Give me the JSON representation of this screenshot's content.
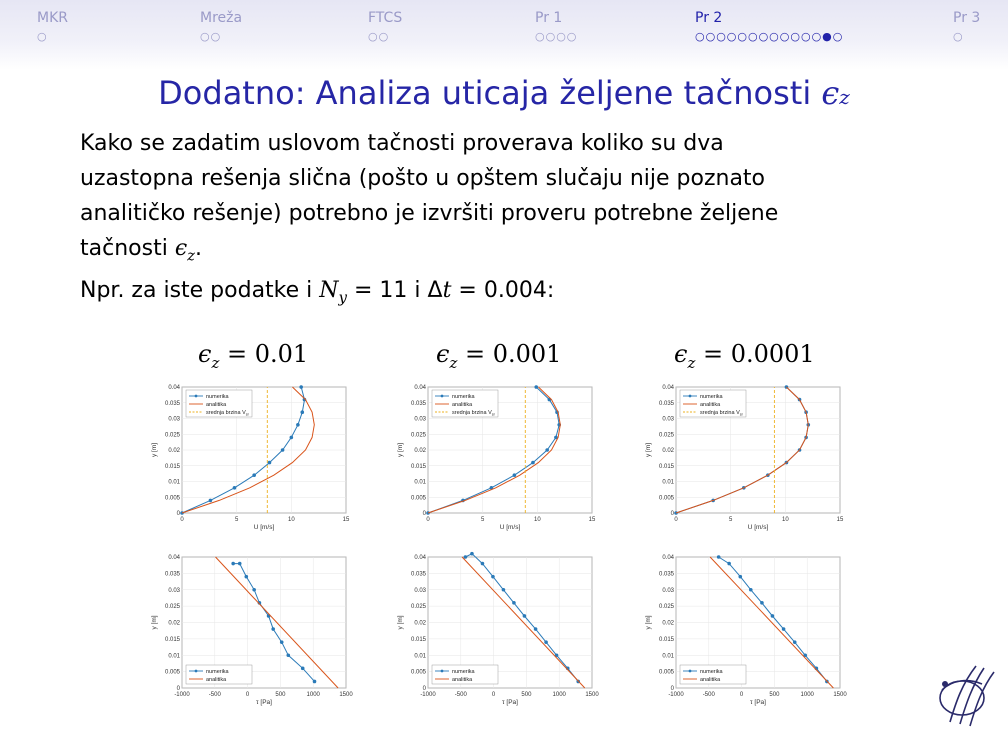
{
  "nav": {
    "items": [
      {
        "label": "MKR",
        "dots": "○",
        "active": false
      },
      {
        "label": "Mreža",
        "dots": "○○",
        "active": false
      },
      {
        "label": "FTCS",
        "dots": "○○",
        "active": false
      },
      {
        "label": "Pr 1",
        "dots": "○○○○",
        "active": false
      },
      {
        "label": "Pr 2",
        "dots": "○○○○○○○○○○○○●○",
        "active": true
      },
      {
        "label": "Pr 3",
        "dots": "○",
        "active": false
      }
    ]
  },
  "title": {
    "text": "Dodatno: Analiza uticaja željene tačnosti",
    "symbol": "ϵ",
    "subscript": "z"
  },
  "body": {
    "line1": "Kako se zadatim uslovom tačnosti proverava koliko su dva",
    "line2": "uzastopna rešenja slična (pošto u opštem slučaju nije poznato",
    "line3": "analitičko rešenje) potrebno je izvršiti proveru potrebne željene",
    "line4_prefix": "tačnosti",
    "line4_symbol": "ϵ",
    "line4_sub": "z",
    "line4_suffix": ".",
    "line5_prefix": "Npr.  za iste podatke i",
    "line5_ny": "N",
    "line5_ny_sub": "y",
    "line5_eq1": " = 11 i Δ",
    "line5_t": "t",
    "line5_eq2": " = 0.004:"
  },
  "panel_labels": [
    {
      "symbol": "ϵ",
      "sub": "z",
      "value": " = 0.01"
    },
    {
      "symbol": "ϵ",
      "sub": "z",
      "value": " = 0.001"
    },
    {
      "symbol": "ϵ",
      "sub": "z",
      "value": " = 0.0001"
    }
  ],
  "colors": {
    "numerika": "#2a7ab8",
    "analitika": "#d9541a",
    "srednja": "#edb120",
    "accent": "#2626a6"
  },
  "chart_data": [
    {
      "type": "line",
      "panel": "velocity",
      "eps_z": "0.01",
      "xlabel": "U [m/s]",
      "ylabel": "y [m]",
      "xlim": [
        0,
        15
      ],
      "ylim": [
        0,
        0.04
      ],
      "xticks": [
        "0",
        "5",
        "10",
        "15"
      ],
      "yticks": [
        "0",
        "0.005",
        "0.01",
        "0.015",
        "0.02",
        "0.025",
        "0.03",
        "0.035",
        "0.04"
      ],
      "legend": [
        "numerika",
        "analitika",
        "srednja brzina V"
      ],
      "legend_sub": "sr",
      "legend_position": "top-left",
      "grid": true,
      "series": [
        {
          "name": "numerika",
          "x": [
            0,
            2.6,
            4.8,
            6.6,
            8.0,
            9.2,
            10.0,
            10.6,
            11.0,
            11.2,
            10.9
          ],
          "y": [
            0,
            0.004,
            0.008,
            0.012,
            0.016,
            0.02,
            0.024,
            0.028,
            0.032,
            0.036,
            0.04
          ]
        },
        {
          "name": "analitika",
          "x": [
            0,
            3.4,
            6.2,
            8.4,
            10.1,
            11.3,
            11.9,
            12.1,
            11.9,
            11.3,
            10.1
          ],
          "y": [
            0,
            0.004,
            0.008,
            0.012,
            0.016,
            0.02,
            0.024,
            0.028,
            0.032,
            0.036,
            0.04
          ]
        },
        {
          "name": "srednja brzina V",
          "x": [
            7.8,
            7.8
          ],
          "y": [
            0,
            0.04
          ]
        }
      ]
    },
    {
      "type": "line",
      "panel": "velocity",
      "eps_z": "0.001",
      "xlabel": "U [m/s]",
      "ylabel": "y [m]",
      "xlim": [
        0,
        15
      ],
      "ylim": [
        0,
        0.04
      ],
      "xticks": [
        "0",
        "5",
        "10",
        "15"
      ],
      "yticks": [
        "0",
        "0.005",
        "0.01",
        "0.015",
        "0.02",
        "0.025",
        "0.03",
        "0.035",
        "0.04"
      ],
      "legend": [
        "numerika",
        "analitika",
        "srednja brzina V"
      ],
      "legend_sub": "sr",
      "legend_position": "top-left",
      "grid": true,
      "series": [
        {
          "name": "numerika",
          "x": [
            0,
            3.2,
            5.8,
            7.9,
            9.6,
            10.9,
            11.7,
            12.0,
            11.8,
            11.1,
            9.9
          ],
          "y": [
            0,
            0.004,
            0.008,
            0.012,
            0.016,
            0.02,
            0.024,
            0.028,
            0.032,
            0.036,
            0.04
          ]
        },
        {
          "name": "analitika",
          "x": [
            0,
            3.4,
            6.2,
            8.4,
            10.1,
            11.3,
            11.9,
            12.1,
            11.9,
            11.3,
            10.1
          ],
          "y": [
            0,
            0.004,
            0.008,
            0.012,
            0.016,
            0.02,
            0.024,
            0.028,
            0.032,
            0.036,
            0.04
          ]
        },
        {
          "name": "srednja brzina V",
          "x": [
            8.9,
            8.9
          ],
          "y": [
            0,
            0.04
          ]
        }
      ]
    },
    {
      "type": "line",
      "panel": "velocity",
      "eps_z": "0.0001",
      "xlabel": "U [m/s]",
      "ylabel": "y [m]",
      "xlim": [
        0,
        15
      ],
      "ylim": [
        0,
        0.04
      ],
      "xticks": [
        "0",
        "5",
        "10",
        "15"
      ],
      "yticks": [
        "0",
        "0.005",
        "0.01",
        "0.015",
        "0.02",
        "0.025",
        "0.03",
        "0.035",
        "0.04"
      ],
      "legend": [
        "numerika",
        "analitika",
        "srednja brzina V"
      ],
      "legend_sub": "sr",
      "legend_position": "top-left",
      "grid": true,
      "series": [
        {
          "name": "numerika",
          "x": [
            0,
            3.4,
            6.2,
            8.4,
            10.1,
            11.3,
            11.9,
            12.1,
            11.9,
            11.3,
            10.1
          ],
          "y": [
            0,
            0.004,
            0.008,
            0.012,
            0.016,
            0.02,
            0.024,
            0.028,
            0.032,
            0.036,
            0.04
          ]
        },
        {
          "name": "analitika",
          "x": [
            0,
            3.4,
            6.2,
            8.4,
            10.1,
            11.3,
            11.9,
            12.1,
            11.9,
            11.3,
            10.1
          ],
          "y": [
            0,
            0.004,
            0.008,
            0.012,
            0.016,
            0.02,
            0.024,
            0.028,
            0.032,
            0.036,
            0.04
          ]
        },
        {
          "name": "srednja brzina V",
          "x": [
            9.0,
            9.0
          ],
          "y": [
            0,
            0.04
          ]
        }
      ]
    },
    {
      "type": "line",
      "panel": "shear",
      "eps_z": "0.01",
      "xlabel": "τ [Pa]",
      "ylabel": "y [m]",
      "xlim": [
        -1000,
        1500
      ],
      "ylim": [
        0,
        0.04
      ],
      "xticks": [
        "-1000",
        "-500",
        "0",
        "500",
        "1000",
        "1500"
      ],
      "yticks": [
        "0",
        "0.005",
        "0.01",
        "0.015",
        "0.02",
        "0.025",
        "0.03",
        "0.035",
        "0.04"
      ],
      "legend": [
        "numerika",
        "analitika"
      ],
      "legend_position": "bottom-left",
      "grid": true,
      "series": [
        {
          "name": "numerika",
          "x": [
            1020,
            840,
            620,
            520,
            390,
            320,
            180,
            100,
            -20,
            -120,
            -220
          ],
          "y": [
            0.002,
            0.006,
            0.01,
            0.014,
            0.018,
            0.022,
            0.026,
            0.03,
            0.034,
            0.038,
            0.038
          ]
        },
        {
          "name": "analitika",
          "x": [
            1380,
            -490
          ],
          "y": [
            0,
            0.04
          ]
        }
      ]
    },
    {
      "type": "line",
      "panel": "shear",
      "eps_z": "0.001",
      "xlabel": "τ [Pa]",
      "ylabel": "y [m]",
      "xlim": [
        -1000,
        1500
      ],
      "ylim": [
        0,
        0.04
      ],
      "xticks": [
        "-1000",
        "-500",
        "0",
        "500",
        "1000",
        "1500"
      ],
      "yticks": [
        "0",
        "0.005",
        "0.01",
        "0.015",
        "0.02",
        "0.025",
        "0.03",
        "0.035",
        "0.04"
      ],
      "legend": [
        "numerika",
        "analitika"
      ],
      "legend_position": "bottom-left",
      "grid": true,
      "series": [
        {
          "name": "numerika",
          "x": [
            1290,
            1130,
            960,
            800,
            640,
            470,
            310,
            150,
            -10,
            -170,
            -330,
            -430
          ],
          "y": [
            0.002,
            0.006,
            0.01,
            0.014,
            0.018,
            0.022,
            0.026,
            0.03,
            0.034,
            0.038,
            0.041,
            0.04
          ]
        },
        {
          "name": "analitika",
          "x": [
            1390,
            -480
          ],
          "y": [
            0,
            0.04
          ]
        }
      ]
    },
    {
      "type": "line",
      "panel": "shear",
      "eps_z": "0.0001",
      "xlabel": "τ [Pa]",
      "ylabel": "y [m]",
      "xlim": [
        -1000,
        1500
      ],
      "ylim": [
        0,
        0.04
      ],
      "xticks": [
        "-1000",
        "-500",
        "0",
        "500",
        "1000",
        "1500"
      ],
      "yticks": [
        "0",
        "0.005",
        "0.01",
        "0.015",
        "0.02",
        "0.025",
        "0.03",
        "0.035",
        "0.04"
      ],
      "legend": [
        "numerika",
        "analitika"
      ],
      "legend_position": "bottom-left",
      "grid": true,
      "series": [
        {
          "name": "numerika",
          "x": [
            1300,
            1140,
            970,
            810,
            640,
            470,
            310,
            140,
            -20,
            -190,
            -350
          ],
          "y": [
            0.002,
            0.006,
            0.01,
            0.014,
            0.018,
            0.022,
            0.026,
            0.03,
            0.034,
            0.038,
            0.04
          ]
        },
        {
          "name": "analitika",
          "x": [
            1400,
            -480
          ],
          "y": [
            0,
            0.04
          ]
        }
      ]
    }
  ]
}
